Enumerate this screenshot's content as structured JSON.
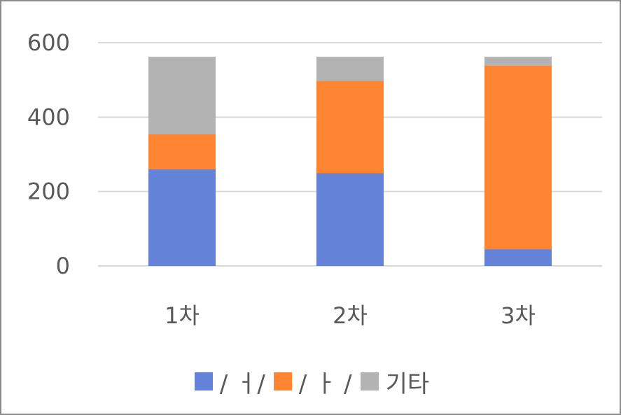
{
  "chart_data": {
    "type": "bar",
    "stacked": true,
    "categories": [
      "1차",
      "2차",
      "3차"
    ],
    "series": [
      {
        "name": "/ ㅓ/",
        "color": "#6482d7",
        "values": [
          260,
          250,
          45
        ]
      },
      {
        "name": "/ ㅏ /",
        "color": "#ff8533",
        "values": [
          95,
          248,
          493
        ]
      },
      {
        "name": "기타",
        "color": "#b3b3b3",
        "values": [
          207,
          64,
          24
        ]
      }
    ],
    "ylim": [
      0,
      600
    ],
    "yticks": [
      0,
      200,
      400,
      600
    ],
    "ytick_labels": [
      "0",
      "200",
      "400",
      "600"
    ],
    "grid": true,
    "legend_position": "bottom",
    "title": "",
    "xlabel": "",
    "ylabel": ""
  }
}
